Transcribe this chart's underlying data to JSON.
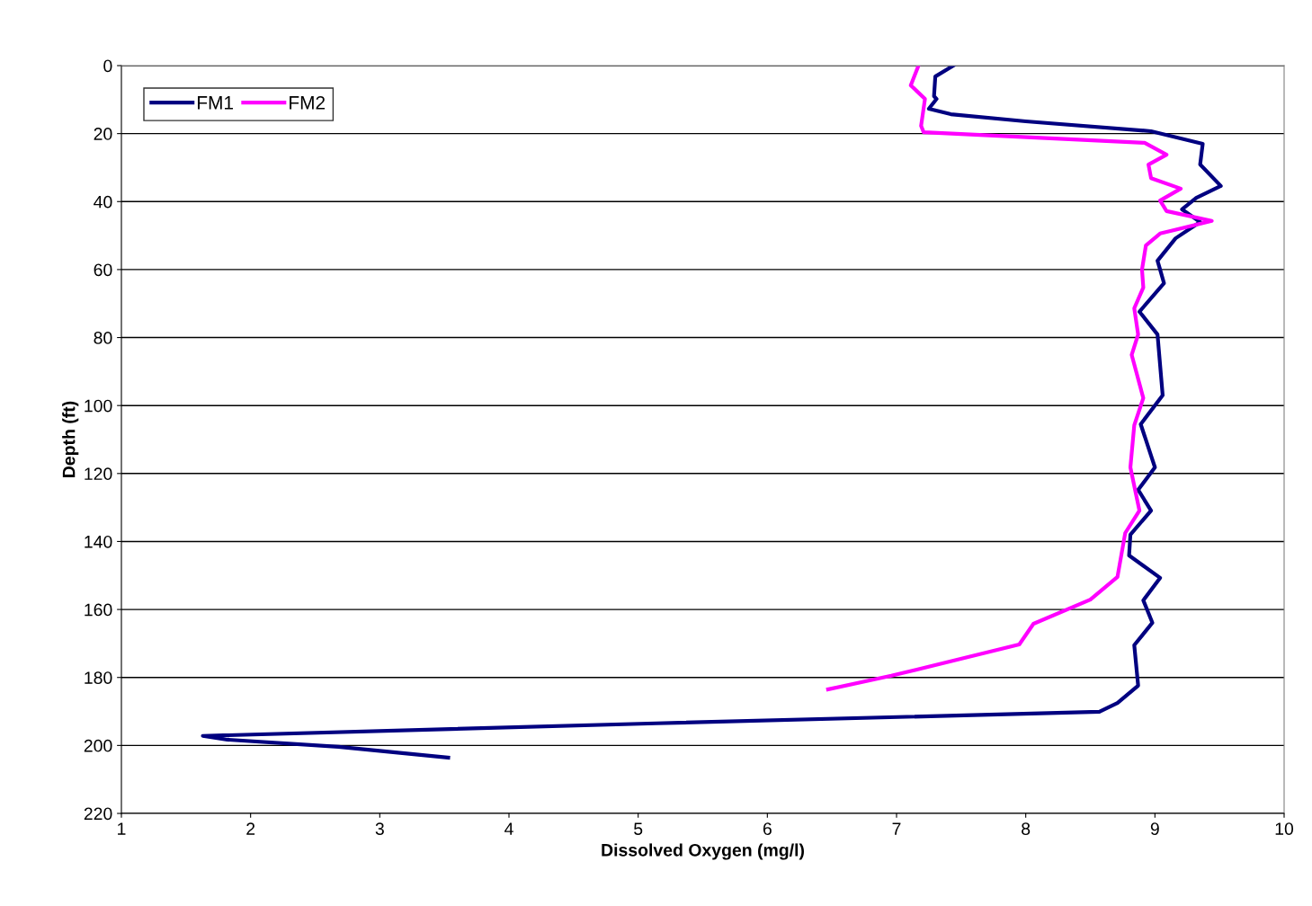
{
  "chart_data": {
    "type": "line",
    "xlabel": "Dissolved Oxygen (mg/l)",
    "ylabel": "Depth (ft)",
    "xlim": [
      1,
      10
    ],
    "xticks": [
      1,
      2,
      3,
      4,
      5,
      6,
      7,
      8,
      9,
      10
    ],
    "ylim": [
      220,
      0
    ],
    "yticks": [
      0,
      20,
      40,
      60,
      80,
      100,
      120,
      140,
      160,
      180,
      200,
      220
    ],
    "grid": "y",
    "legend": "top left",
    "marker": "none",
    "line_style": "solid",
    "series": [
      {
        "name": "FM1",
        "color": "#000080",
        "x": [
          7.44,
          7.3,
          7.29,
          7.31,
          7.25,
          7.42,
          8.0,
          8.97,
          9.37,
          9.35,
          9.51,
          9.32,
          9.21,
          9.35,
          9.16,
          9.02,
          9.04,
          9.07,
          8.88,
          9.02,
          9.06,
          8.89,
          9.0,
          8.87,
          8.97,
          8.81,
          8.8,
          9.04,
          8.91,
          8.98,
          8.84,
          8.87,
          8.71,
          8.57,
          5.14,
          1.63,
          1.82,
          2.68,
          3.53
        ],
        "values": [
          0,
          3.2,
          9.0,
          9.8,
          12.7,
          14.3,
          16.4,
          19.3,
          23.0,
          29.1,
          35.4,
          38.9,
          42.3,
          46.0,
          50.8,
          57.4,
          60.0,
          64.0,
          72.4,
          79.1,
          97.0,
          105.5,
          118.2,
          124.8,
          130.9,
          138.0,
          144.1,
          150.7,
          157.3,
          163.9,
          170.5,
          182.4,
          187.5,
          190.1,
          193.5,
          197.2,
          198.3,
          200.4,
          203.6
        ]
      },
      {
        "name": "FM2",
        "color": "#ff00ff",
        "x": [
          7.17,
          7.11,
          7.22,
          7.19,
          7.21,
          8.92,
          9.09,
          8.95,
          8.97,
          9.2,
          9.04,
          9.09,
          9.44,
          9.04,
          8.93,
          8.9,
          8.91,
          8.84,
          8.87,
          8.82,
          8.91,
          8.84,
          8.81,
          8.88,
          8.77,
          8.71,
          8.5,
          8.06,
          7.95,
          6.96,
          6.47
        ],
        "values": [
          0,
          5.8,
          9.8,
          17.7,
          19.6,
          22.7,
          26.2,
          29.1,
          33.1,
          36.2,
          39.7,
          42.8,
          45.7,
          49.4,
          52.9,
          60.0,
          65.3,
          71.4,
          79.1,
          85.1,
          97.8,
          105.8,
          118.2,
          130.9,
          137.5,
          150.4,
          157.1,
          164.2,
          170.3,
          179.5,
          183.5
        ]
      }
    ]
  }
}
